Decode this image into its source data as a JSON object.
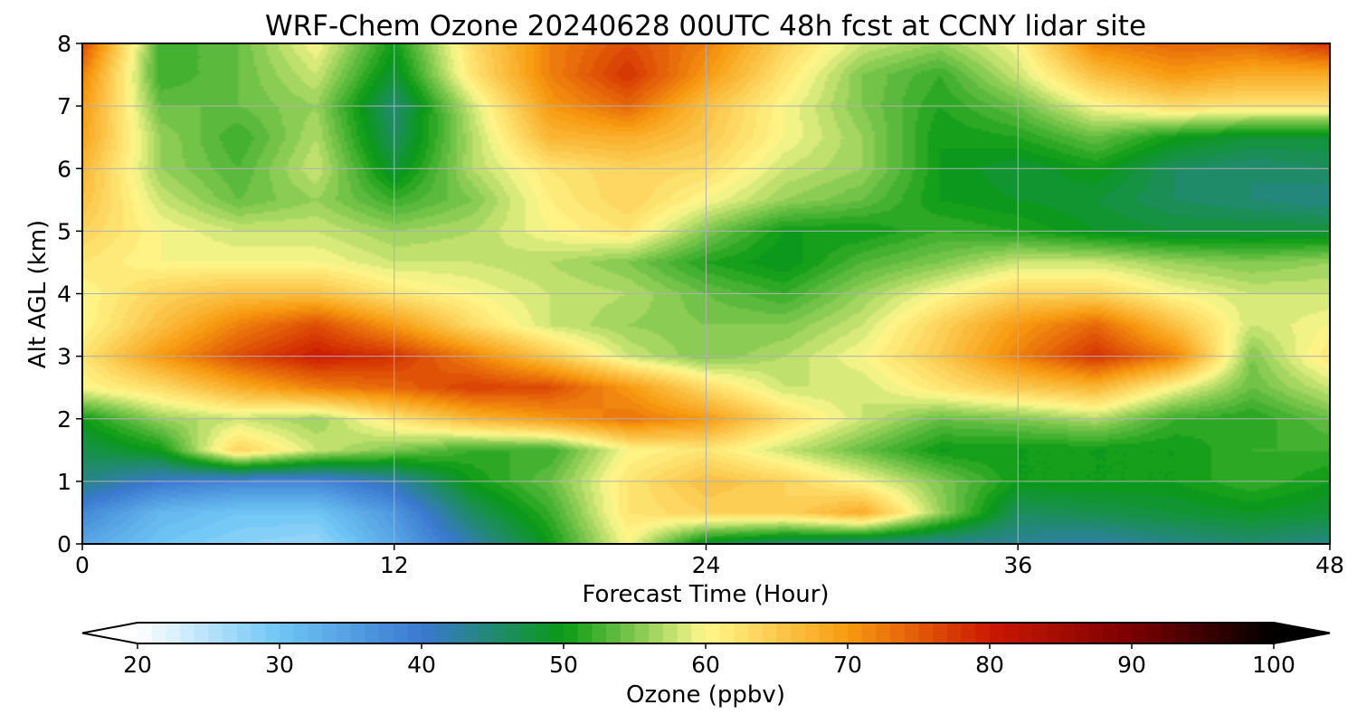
{
  "chart_data": {
    "type": "heatmap",
    "title": "WRF-Chem Ozone  20240628 00UTC 48h fcst at CCNY lidar site",
    "xlabel": "Forecast Time (Hour)",
    "ylabel": "Alt AGL (km)",
    "xlim": [
      0,
      48
    ],
    "ylim": [
      0,
      8
    ],
    "xticks": [
      0,
      12,
      24,
      36,
      48
    ],
    "yticks": [
      0,
      1,
      2,
      3,
      4,
      5,
      6,
      7,
      8
    ],
    "grid": true,
    "x": [
      0,
      3,
      6,
      9,
      12,
      15,
      18,
      21,
      24,
      27,
      30,
      33,
      36,
      39,
      42,
      45,
      48
    ],
    "y": [
      0,
      0.5,
      1,
      1.5,
      2,
      2.5,
      3,
      3.5,
      4,
      4.5,
      5,
      5.5,
      6,
      6.5,
      7,
      7.5,
      8
    ],
    "z": [
      [
        34,
        30,
        28,
        27,
        34,
        42,
        50,
        60,
        48,
        45,
        44,
        43,
        43,
        42,
        44,
        45,
        44
      ],
      [
        38,
        32,
        30,
        30,
        36,
        46,
        52,
        62,
        64,
        64,
        68,
        56,
        46,
        47,
        48,
        49,
        48
      ],
      [
        44,
        40,
        38,
        38,
        42,
        50,
        54,
        62,
        66,
        64,
        60,
        55,
        50,
        50,
        50,
        52,
        50
      ],
      [
        47,
        50,
        64,
        58,
        55,
        52,
        52,
        60,
        62,
        58,
        54,
        50,
        50,
        50,
        50,
        52,
        52
      ],
      [
        50,
        56,
        58,
        56,
        62,
        67,
        70,
        73,
        70,
        63,
        58,
        54,
        55,
        57,
        52,
        51,
        54
      ],
      [
        60,
        63,
        68,
        72,
        74,
        77,
        76,
        70,
        63,
        58,
        58,
        62,
        65,
        67,
        60,
        54,
        58
      ],
      [
        62,
        70,
        76,
        80,
        78,
        72,
        65,
        58,
        55,
        57,
        60,
        65,
        72,
        78,
        72,
        55,
        62
      ],
      [
        60,
        66,
        72,
        76,
        70,
        63,
        58,
        56,
        55,
        55,
        58,
        64,
        70,
        74,
        66,
        58,
        60
      ],
      [
        60,
        64,
        66,
        66,
        62,
        60,
        58,
        57,
        54,
        52,
        56,
        60,
        64,
        64,
        60,
        58,
        58
      ],
      [
        62,
        60,
        60,
        60,
        58,
        58,
        57,
        55,
        51,
        49,
        53,
        55,
        58,
        58,
        56,
        55,
        56
      ],
      [
        64,
        60,
        58,
        58,
        56,
        57,
        60,
        62,
        55,
        50,
        50,
        52,
        51,
        49,
        48,
        48,
        48
      ],
      [
        66,
        58,
        54,
        56,
        52,
        55,
        61,
        64,
        60,
        56,
        54,
        50,
        49,
        48,
        46,
        45,
        44
      ],
      [
        67,
        56,
        53,
        58,
        48,
        57,
        62,
        64,
        63,
        58,
        56,
        50,
        48,
        50,
        46,
        45,
        46
      ],
      [
        69,
        56,
        52,
        57,
        46,
        57,
        67,
        68,
        65,
        60,
        56,
        50,
        51,
        54,
        50,
        48,
        48
      ],
      [
        70,
        54,
        54,
        56,
        45,
        58,
        70,
        74,
        66,
        60,
        55,
        51,
        54,
        60,
        63,
        62,
        62
      ],
      [
        72,
        52,
        54,
        58,
        48,
        62,
        72,
        78,
        70,
        62,
        55,
        52,
        58,
        66,
        70,
        68,
        68
      ],
      [
        76,
        52,
        54,
        60,
        50,
        63,
        72,
        76,
        72,
        64,
        58,
        56,
        60,
        72,
        74,
        74,
        78
      ]
    ],
    "colorbar": {
      "label": "Ozone  (ppbv)",
      "min": 20,
      "max": 100,
      "ticks": [
        20,
        30,
        40,
        50,
        60,
        70,
        80,
        90,
        100
      ],
      "extend": "both",
      "stops": [
        [
          20,
          "#ffffff"
        ],
        [
          30,
          "#6ec6f5"
        ],
        [
          40,
          "#3a78d0"
        ],
        [
          50,
          "#0a9a14"
        ],
        [
          55,
          "#7ec84e"
        ],
        [
          60,
          "#fff88c"
        ],
        [
          70,
          "#f89a10"
        ],
        [
          80,
          "#cc1800"
        ],
        [
          90,
          "#7a0000"
        ],
        [
          100,
          "#000000"
        ]
      ]
    }
  }
}
